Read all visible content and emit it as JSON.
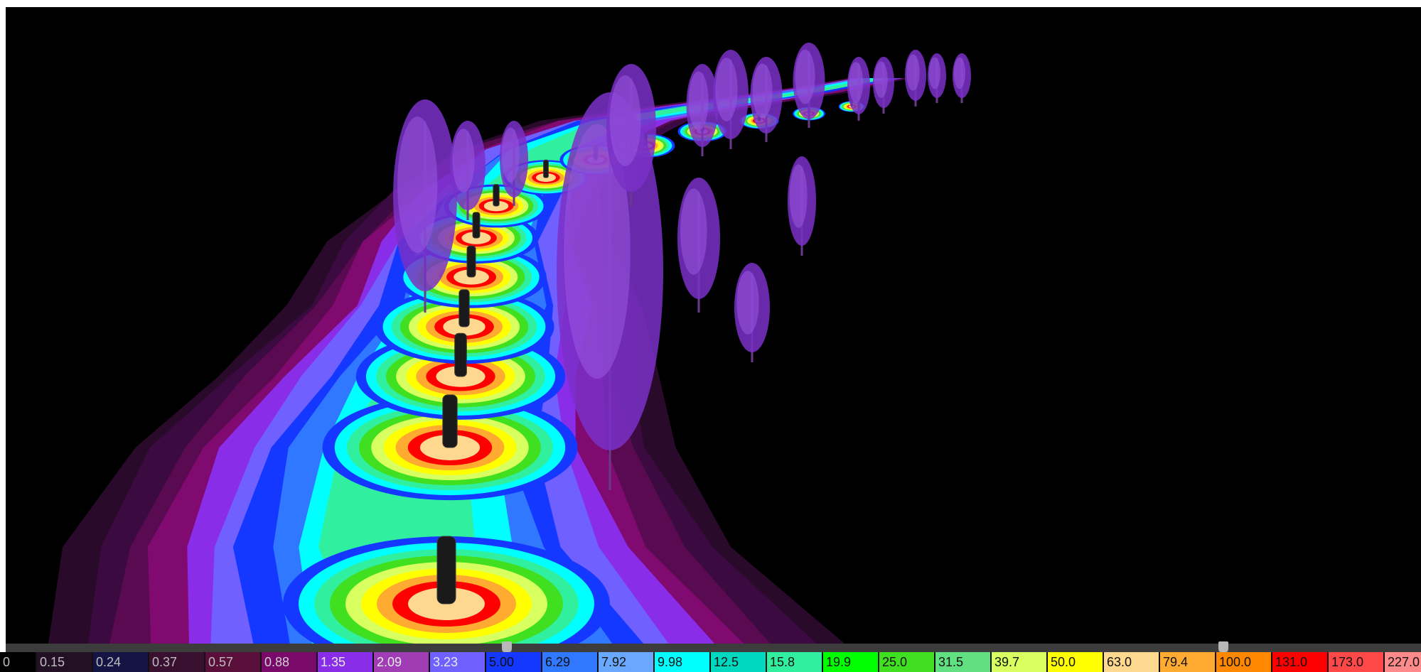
{
  "legend": {
    "cells": [
      {
        "label": "0",
        "color": "#000000",
        "text_color": "#bdbdbd"
      },
      {
        "label": "0.15",
        "color": "#241024",
        "text_color": "#bdbdbd"
      },
      {
        "label": "0.24",
        "color": "#151545",
        "text_color": "#bdbdbd"
      },
      {
        "label": "0.37",
        "color": "#3a1030",
        "text_color": "#bdbdbd"
      },
      {
        "label": "0.57",
        "color": "#5a0e3a",
        "text_color": "#bdbdbd"
      },
      {
        "label": "0.88",
        "color": "#7a0a6a",
        "text_color": "#cfcfcf"
      },
      {
        "label": "1.35",
        "color": "#8a2de8",
        "text_color": "#e8e8e8"
      },
      {
        "label": "2.09",
        "color": "#a03cb4",
        "text_color": "#e8e8e8"
      },
      {
        "label": "3.23",
        "color": "#7060ff",
        "text_color": "#e8e8e8"
      },
      {
        "label": "5.00",
        "color": "#1438ff",
        "text_color": "#111111"
      },
      {
        "label": "6.29",
        "color": "#2f78ff",
        "text_color": "#111111"
      },
      {
        "label": "7.92",
        "color": "#6aa8ff",
        "text_color": "#111111"
      },
      {
        "label": "9.98",
        "color": "#00ffff",
        "text_color": "#111111"
      },
      {
        "label": "12.5",
        "color": "#00d8c0",
        "text_color": "#111111"
      },
      {
        "label": "15.8",
        "color": "#30f0a0",
        "text_color": "#111111"
      },
      {
        "label": "19.9",
        "color": "#00ff00",
        "text_color": "#111111"
      },
      {
        "label": "25.0",
        "color": "#40e020",
        "text_color": "#111111"
      },
      {
        "label": "31.5",
        "color": "#60e080",
        "text_color": "#111111"
      },
      {
        "label": "39.7",
        "color": "#d8ff60",
        "text_color": "#111111"
      },
      {
        "label": "50.0",
        "color": "#ffff00",
        "text_color": "#111111"
      },
      {
        "label": "63.0",
        "color": "#ffd890",
        "text_color": "#111111"
      },
      {
        "label": "79.4",
        "color": "#ffaa30",
        "text_color": "#111111"
      },
      {
        "label": "100.0",
        "color": "#ff8800",
        "text_color": "#111111"
      },
      {
        "label": "131.0",
        "color": "#ff0000",
        "text_color": "#111111"
      },
      {
        "label": "173.0",
        "color": "#ff4848",
        "text_color": "#111111"
      },
      {
        "label": "227.0",
        "color": "#ff8a8a",
        "text_color": "#111111"
      }
    ]
  },
  "slider": {
    "handle_labels_min": "5.00",
    "handle_labels_max": "100.0"
  },
  "scene": {
    "ground_band_colors": [
      "#2a0a2a",
      "#3a0a40",
      "#5a0a50",
      "#800a70",
      "#8a2de8",
      "#7060ff",
      "#1438ff",
      "#2f78ff",
      "#00ffff",
      "#30f0a0",
      "#40e020",
      "#d8ff60",
      "#ffff00",
      "#ffaa30",
      "#ff0000",
      "#ffd890"
    ],
    "pole_color": "#1a1a1a",
    "tree_color": "#7a30c8"
  }
}
